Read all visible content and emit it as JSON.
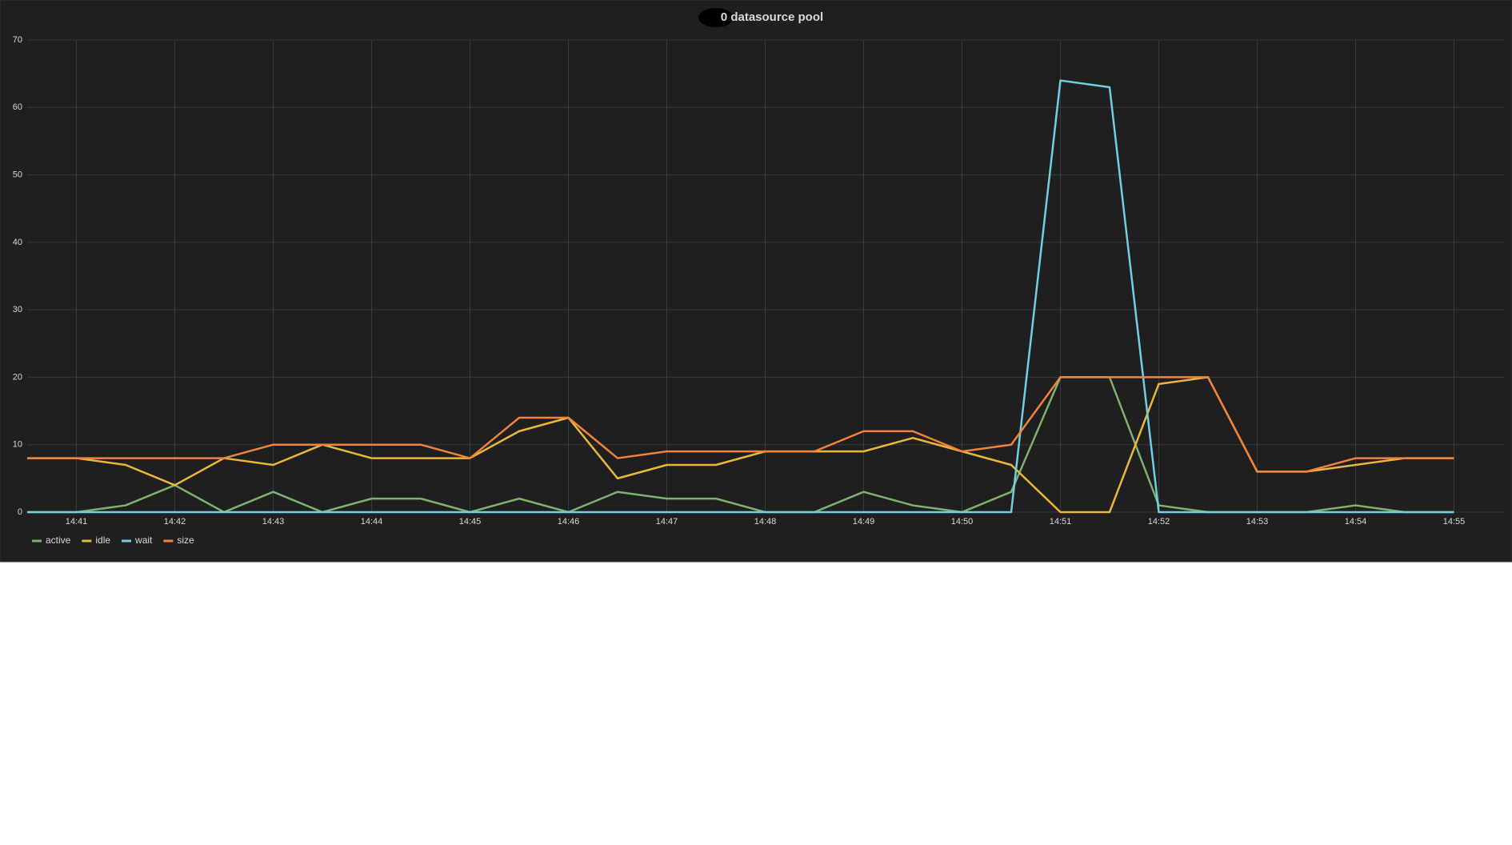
{
  "chart_data": {
    "type": "line",
    "title": "0 datasource pool",
    "categories": [
      null,
      "14:41",
      null,
      "14:42",
      null,
      "14:43",
      null,
      "14:44",
      null,
      "14:45",
      null,
      "14:46",
      null,
      "14:47",
      null,
      "14:48",
      null,
      "14:49",
      null,
      "14:50",
      null,
      "14:51",
      null,
      "14:52",
      null,
      "14:53",
      null,
      "14:54",
      null,
      "14:55"
    ],
    "series": [
      {
        "name": "active",
        "color": "#7eb26d",
        "values": [
          0,
          0,
          1,
          4,
          0,
          3,
          0,
          2,
          2,
          0,
          2,
          0,
          3,
          2,
          2,
          0,
          0,
          3,
          1,
          0,
          3,
          20,
          20,
          1,
          0,
          0,
          0,
          1,
          0,
          0
        ]
      },
      {
        "name": "idle",
        "color": "#eab839",
        "values": [
          8,
          8,
          7,
          4,
          8,
          7,
          10,
          8,
          8,
          8,
          12,
          14,
          5,
          7,
          7,
          9,
          9,
          9,
          11,
          9,
          7,
          0,
          0,
          19,
          20,
          6,
          6,
          7,
          8,
          8
        ]
      },
      {
        "name": "wait",
        "color": "#6ed0e0",
        "values": [
          0,
          0,
          0,
          0,
          0,
          0,
          0,
          0,
          0,
          0,
          0,
          0,
          0,
          0,
          0,
          0,
          0,
          0,
          0,
          0,
          0,
          64,
          63,
          0,
          0,
          0,
          0,
          0,
          0,
          0
        ]
      },
      {
        "name": "size",
        "color": "#ef843c",
        "values": [
          8,
          8,
          8,
          8,
          8,
          10,
          10,
          10,
          10,
          8,
          14,
          14,
          8,
          9,
          9,
          9,
          9,
          12,
          12,
          9,
          10,
          20,
          20,
          20,
          20,
          6,
          6,
          8,
          8,
          8
        ]
      }
    ],
    "ylim": [
      0,
      70
    ],
    "yticks": [
      0,
      10,
      20,
      30,
      40,
      50,
      60,
      70
    ],
    "grid": true,
    "legend": "bottom-left"
  }
}
